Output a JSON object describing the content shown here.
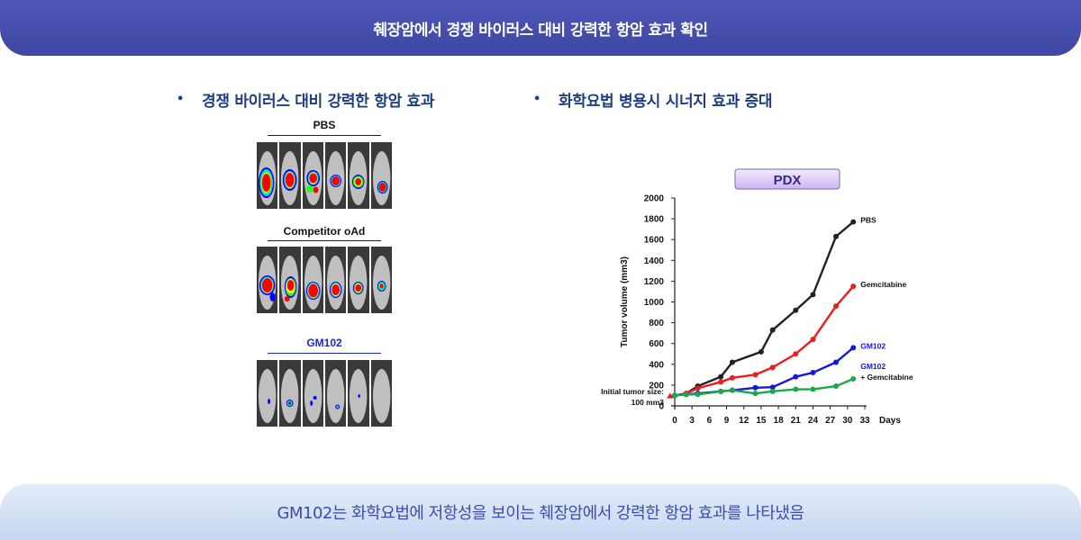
{
  "header": {
    "title": "췌장암에서 경쟁 바이러스 대비 강력한 항암 효과 확인"
  },
  "left": {
    "bullet": "경쟁 바이러스 대비 강력한 항암 효과",
    "panels": [
      {
        "label": "PBS"
      },
      {
        "label": "Competitor oAd"
      },
      {
        "label": "GM102"
      }
    ]
  },
  "right": {
    "bullet": "화학요법 병용시 시너지 효과 증대"
  },
  "footer": {
    "text": "GM102는 화학요법에 저항성을 보이는 췌장암에서 강력한 항암 효과를 나타냈음"
  },
  "chart_data": {
    "type": "line",
    "title": "PDX",
    "ylabel": "Tumor volume (mm3)",
    "xlabel": "Days",
    "ylim": [
      0,
      2000
    ],
    "xlim": [
      0,
      33
    ],
    "yticks": [
      0,
      200,
      400,
      600,
      800,
      1000,
      1200,
      1400,
      1600,
      1800,
      2000
    ],
    "xticks": [
      0,
      3,
      6,
      9,
      12,
      15,
      18,
      21,
      24,
      27,
      30,
      33
    ],
    "annotation": {
      "line1": "Initial tumor size:",
      "line2": "100 mm3"
    },
    "grid": false,
    "series": [
      {
        "name": "PBS",
        "color": "#222222",
        "x": [
          0,
          2,
          4,
          8,
          10,
          15,
          17,
          21,
          24,
          28,
          31
        ],
        "y": [
          100,
          120,
          190,
          280,
          420,
          520,
          730,
          920,
          1070,
          1630,
          1770
        ]
      },
      {
        "name": "Gemcitabine",
        "color": "#ee1c1c",
        "x": [
          0,
          2,
          4,
          8,
          10,
          14,
          17,
          21,
          24,
          28,
          31
        ],
        "y": [
          100,
          120,
          170,
          230,
          270,
          300,
          370,
          500,
          640,
          960,
          1150
        ]
      },
      {
        "name": "GM102",
        "color": "#1616dd",
        "x": [
          0,
          2,
          4,
          8,
          10,
          14,
          17,
          21,
          24,
          28,
          31
        ],
        "y": [
          100,
          110,
          120,
          140,
          150,
          175,
          180,
          280,
          320,
          420,
          560
        ]
      },
      {
        "name": "GM102 + Gemcitabine",
        "label_lines": [
          "GM102",
          "+ Gemcitabine"
        ],
        "color": "#1aa84a",
        "x": [
          0,
          2,
          4,
          8,
          10,
          14,
          17,
          21,
          24,
          28,
          31
        ],
        "y": [
          100,
          110,
          110,
          140,
          150,
          120,
          140,
          160,
          160,
          190,
          260
        ]
      }
    ]
  }
}
